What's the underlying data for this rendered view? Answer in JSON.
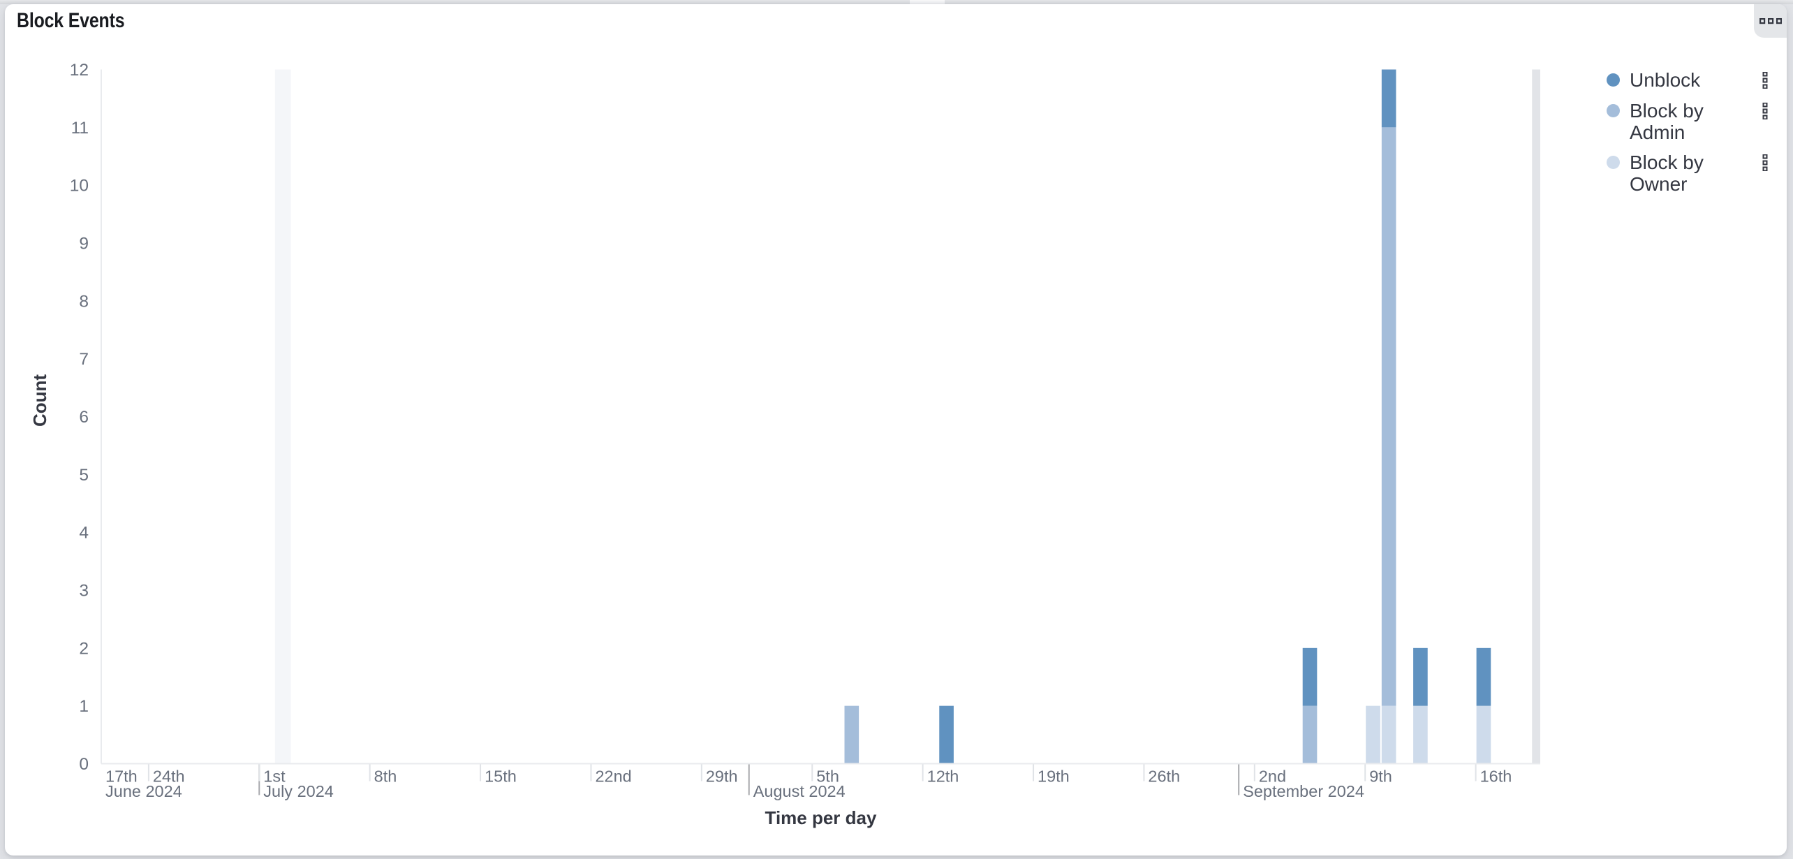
{
  "panel": {
    "title": "Block Events",
    "menu_icon": "boxes-horizontal-icon"
  },
  "chart_data": {
    "type": "bar",
    "stacked": true,
    "time_unit": "1 day",
    "title": "Block Events",
    "xlabel": "Time per day",
    "ylabel": "Count",
    "ylim": [
      0,
      12
    ],
    "y_ticks": [
      0,
      1,
      2,
      3,
      4,
      5,
      6,
      7,
      8,
      9,
      10,
      11,
      12
    ],
    "grid": false,
    "legend_position": "right",
    "x_domain": {
      "start": "2024-06-21T00:00:00",
      "end": "2024-09-20T02:00:00"
    },
    "day_ticks": [
      {
        "date": "2024-06-17",
        "label": "17th"
      },
      {
        "date": "2024-06-24",
        "label": "24th"
      },
      {
        "date": "2024-07-01",
        "label": "1st"
      },
      {
        "date": "2024-07-08",
        "label": "8th"
      },
      {
        "date": "2024-07-15",
        "label": "15th"
      },
      {
        "date": "2024-07-22",
        "label": "22nd"
      },
      {
        "date": "2024-07-29",
        "label": "29th"
      },
      {
        "date": "2024-08-05",
        "label": "5th"
      },
      {
        "date": "2024-08-12",
        "label": "12th"
      },
      {
        "date": "2024-08-19",
        "label": "19th"
      },
      {
        "date": "2024-08-26",
        "label": "26th"
      },
      {
        "date": "2024-09-02",
        "label": "2nd"
      },
      {
        "date": "2024-09-09",
        "label": "9th"
      },
      {
        "date": "2024-09-16",
        "label": "16th"
      }
    ],
    "month_ticks": [
      {
        "date": "2024-06-01",
        "label": "June 2024"
      },
      {
        "date": "2024-07-01",
        "label": "July 2024"
      },
      {
        "date": "2024-08-01",
        "label": "August 2024"
      },
      {
        "date": "2024-09-01",
        "label": "September 2024"
      }
    ],
    "series": [
      {
        "name": "Unblock",
        "color": "#6092C0"
      },
      {
        "name": "Block by Admin",
        "color": "#A4BDDA"
      },
      {
        "name": "Block by Owner",
        "color": "#CEDBEB"
      }
    ],
    "bars": [
      {
        "date": "2024-08-07",
        "values": {
          "Unblock": 0,
          "Block by Admin": 1,
          "Block by Owner": 0
        }
      },
      {
        "date": "2024-08-13",
        "values": {
          "Unblock": 1,
          "Block by Admin": 0,
          "Block by Owner": 0
        }
      },
      {
        "date": "2024-09-05",
        "values": {
          "Unblock": 1,
          "Block by Admin": 1,
          "Block by Owner": 0
        }
      },
      {
        "date": "2024-09-09",
        "values": {
          "Unblock": 0,
          "Block by Admin": 0,
          "Block by Owner": 1
        }
      },
      {
        "date": "2024-09-10",
        "values": {
          "Unblock": 1,
          "Block by Admin": 10,
          "Block by Owner": 1
        }
      },
      {
        "date": "2024-09-12",
        "values": {
          "Unblock": 1,
          "Block by Admin": 0,
          "Block by Owner": 1
        }
      },
      {
        "date": "2024-09-16",
        "values": {
          "Unblock": 1,
          "Block by Admin": 0,
          "Block by Owner": 1
        }
      }
    ],
    "bands": [
      {
        "name": "highlighted-bucket-band",
        "start": "2024-07-02T00:00:00",
        "end": "2024-07-03T00:00:00",
        "color": "#F4F6F9"
      },
      {
        "name": "partial-bucket-endzone-band",
        "start": "2024-09-19T13:30:00",
        "end": "2024-09-20T02:00:00",
        "color": "#E2E4E8"
      }
    ]
  },
  "colors": {
    "panel_background": "#FFFFFF",
    "page_background": "#E2E4E8",
    "title_text": "#1A1C21",
    "axis_title_text": "#343741",
    "axis_label_text": "#69707D",
    "legend_text": "#343741",
    "axis_line": "#E9EBEE",
    "day_tick_line": "#E0E3E7",
    "month_tick_line": "#A8A9AD",
    "icon": "#343741"
  }
}
